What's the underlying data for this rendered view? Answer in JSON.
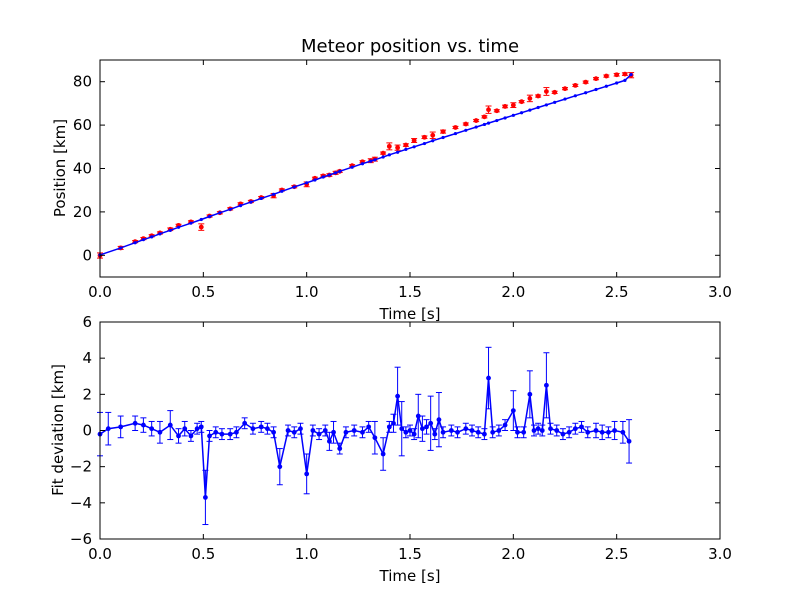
{
  "figure": {
    "background": "#ffffff"
  },
  "chart_data": [
    {
      "type": "scatter",
      "title": "Meteor position vs. time",
      "xlabel": "Time [s]",
      "ylabel": "Position [km]",
      "xlim": [
        0.0,
        3.0
      ],
      "ylim": [
        -10,
        90
      ],
      "xticks": [
        "0.0",
        "0.5",
        "1.0",
        "1.5",
        "2.0",
        "2.5",
        "3.0"
      ],
      "yticks": [
        "0",
        "20",
        "40",
        "60",
        "80"
      ],
      "grid": false,
      "series": [
        {
          "kind": "measurements-with-errorbars",
          "color": "#ff0000",
          "x": [
            0.0,
            0.1,
            0.17,
            0.21,
            0.25,
            0.29,
            0.34,
            0.38,
            0.44,
            0.49,
            0.53,
            0.58,
            0.63,
            0.68,
            0.73,
            0.78,
            0.84,
            0.88,
            0.94,
            1.0,
            1.04,
            1.08,
            1.11,
            1.14,
            1.16,
            1.22,
            1.27,
            1.31,
            1.33,
            1.37,
            1.4,
            1.44,
            1.48,
            1.52,
            1.57,
            1.61,
            1.66,
            1.72,
            1.77,
            1.82,
            1.86,
            1.88,
            1.92,
            1.96,
            2.0,
            2.04,
            2.08,
            2.12,
            2.16,
            2.2,
            2.25,
            2.3,
            2.35,
            2.4,
            2.45,
            2.5,
            2.54,
            2.57
          ],
          "y": [
            -0.1,
            3.4,
            6.3,
            7.7,
            9.0,
            10.3,
            12.0,
            13.8,
            15.4,
            13.0,
            18.1,
            19.6,
            21.4,
            23.7,
            24.8,
            26.6,
            27.5,
            30.1,
            31.6,
            32.7,
            35.5,
            36.6,
            37.0,
            38.0,
            38.7,
            41.3,
            43.1,
            43.6,
            44.3,
            47.1,
            50.2,
            49.6,
            50.8,
            52.9,
            54.4,
            55.3,
            57.0,
            58.9,
            60.5,
            62.1,
            63.8,
            67.1,
            66.6,
            68.6,
            69.2,
            70.8,
            72.3,
            73.4,
            75.5,
            75.1,
            76.8,
            78.3,
            79.8,
            81.4,
            82.6,
            83.2,
            83.5,
            83.0
          ],
          "yerr": [
            1.2,
            0.7,
            0.5,
            0.5,
            0.5,
            0.5,
            0.6,
            0.5,
            0.5,
            1.5,
            0.5,
            0.5,
            0.5,
            0.5,
            0.5,
            0.5,
            1.0,
            0.5,
            0.5,
            1.1,
            0.5,
            0.5,
            0.6,
            0.7,
            0.5,
            0.5,
            0.5,
            0.9,
            0.9,
            0.5,
            1.6,
            1.2,
            0.6,
            0.9,
            0.6,
            1.5,
            0.7,
            0.5,
            0.5,
            0.5,
            0.5,
            1.7,
            0.5,
            0.6,
            1.1,
            0.5,
            1.5,
            0.5,
            1.8,
            0.5,
            0.5,
            0.5,
            0.5,
            0.5,
            0.5,
            0.6,
            0.6,
            1.2
          ]
        },
        {
          "kind": "fit-line",
          "color": "#0000ff",
          "x": [
            0.0,
            0.1,
            0.17,
            0.21,
            0.25,
            0.29,
            0.34,
            0.38,
            0.44,
            0.49,
            0.53,
            0.58,
            0.63,
            0.68,
            0.73,
            0.78,
            0.84,
            0.88,
            0.94,
            1.0,
            1.04,
            1.08,
            1.11,
            1.14,
            1.16,
            1.22,
            1.27,
            1.31,
            1.33,
            1.37,
            1.4,
            1.44,
            1.48,
            1.52,
            1.57,
            1.61,
            1.66,
            1.72,
            1.77,
            1.82,
            1.86,
            1.88,
            1.92,
            1.96,
            2.0,
            2.04,
            2.08,
            2.12,
            2.16,
            2.2,
            2.25,
            2.3,
            2.35,
            2.4,
            2.45,
            2.5,
            2.54,
            2.57
          ],
          "y": [
            0.2,
            3.4,
            5.8,
            7.2,
            8.5,
            9.9,
            11.5,
            12.9,
            14.8,
            16.5,
            17.9,
            19.6,
            21.2,
            22.9,
            24.5,
            26.2,
            28.1,
            29.5,
            31.5,
            33.4,
            34.7,
            36.1,
            37.0,
            38.0,
            38.7,
            40.6,
            42.2,
            43.4,
            44.0,
            45.3,
            46.3,
            47.5,
            48.8,
            50.0,
            51.5,
            52.8,
            54.3,
            56.1,
            57.6,
            59.1,
            60.3,
            60.9,
            62.1,
            63.3,
            64.5,
            65.7,
            66.9,
            68.1,
            69.3,
            70.5,
            72.0,
            73.5,
            74.9,
            76.4,
            77.9,
            79.4,
            80.6,
            83.3
          ]
        }
      ]
    },
    {
      "type": "line",
      "title": "",
      "xlabel": "Time [s]",
      "ylabel": "Fit deviation [km]",
      "xlim": [
        0.0,
        3.0
      ],
      "ylim": [
        -6,
        6
      ],
      "xticks": [
        "0.0",
        "0.5",
        "1.0",
        "1.5",
        "2.0",
        "2.5",
        "3.0"
      ],
      "yticks": [
        "−6",
        "−4",
        "−2",
        "0",
        "2",
        "4",
        "6"
      ],
      "grid": false,
      "series": [
        {
          "kind": "residuals-with-errorbars",
          "color": "#0000ff",
          "x": [
            0.0,
            0.04,
            0.1,
            0.17,
            0.21,
            0.25,
            0.29,
            0.34,
            0.38,
            0.41,
            0.44,
            0.47,
            0.49,
            0.51,
            0.53,
            0.56,
            0.59,
            0.63,
            0.66,
            0.7,
            0.74,
            0.78,
            0.81,
            0.84,
            0.87,
            0.91,
            0.94,
            0.97,
            1.0,
            1.03,
            1.06,
            1.09,
            1.11,
            1.13,
            1.16,
            1.19,
            1.23,
            1.27,
            1.3,
            1.33,
            1.37,
            1.4,
            1.42,
            1.44,
            1.46,
            1.48,
            1.5,
            1.52,
            1.54,
            1.56,
            1.58,
            1.6,
            1.62,
            1.64,
            1.66,
            1.7,
            1.73,
            1.77,
            1.8,
            1.83,
            1.86,
            1.88,
            1.9,
            1.93,
            1.96,
            2.0,
            2.02,
            2.05,
            2.08,
            2.1,
            2.12,
            2.14,
            2.16,
            2.18,
            2.21,
            2.24,
            2.27,
            2.3,
            2.33,
            2.36,
            2.4,
            2.43,
            2.46,
            2.49,
            2.53,
            2.56
          ],
          "y": [
            -0.2,
            0.1,
            0.2,
            0.4,
            0.3,
            0.1,
            -0.1,
            0.3,
            -0.3,
            0.1,
            -0.3,
            0.1,
            0.2,
            -3.7,
            -0.3,
            -0.1,
            -0.2,
            -0.2,
            -0.1,
            0.4,
            0.1,
            0.2,
            0.1,
            -0.1,
            -2.0,
            0.0,
            -0.1,
            0.1,
            -2.4,
            0.0,
            -0.2,
            0.0,
            -0.6,
            -0.1,
            -1.0,
            -0.1,
            0.0,
            -0.1,
            0.2,
            -0.4,
            -1.3,
            0.2,
            0.4,
            1.9,
            0.1,
            -0.1,
            0.0,
            -0.2,
            0.8,
            0.1,
            0.2,
            0.4,
            -0.2,
            0.6,
            -0.1,
            0.0,
            -0.1,
            0.1,
            0.0,
            -0.1,
            -0.2,
            2.9,
            -0.1,
            0.0,
            0.3,
            1.1,
            -0.1,
            -0.1,
            2.0,
            0.0,
            0.1,
            0.0,
            2.5,
            0.1,
            0.0,
            -0.2,
            -0.1,
            0.1,
            0.2,
            -0.1,
            0.0,
            -0.1,
            -0.1,
            0.0,
            -0.1,
            -0.6
          ],
          "yerr": [
            1.2,
            0.9,
            0.6,
            0.4,
            0.4,
            0.4,
            0.6,
            0.8,
            0.4,
            0.4,
            0.3,
            0.3,
            0.3,
            1.5,
            0.3,
            0.3,
            0.3,
            0.3,
            0.3,
            0.3,
            0.3,
            0.3,
            0.3,
            0.3,
            1.0,
            0.3,
            0.3,
            0.3,
            1.1,
            0.3,
            0.3,
            0.3,
            0.5,
            0.6,
            0.3,
            0.3,
            0.3,
            0.3,
            0.3,
            0.9,
            0.9,
            0.3,
            0.5,
            1.6,
            1.5,
            0.3,
            0.3,
            0.3,
            1.2,
            0.7,
            0.4,
            1.5,
            0.3,
            1.5,
            0.3,
            0.3,
            0.3,
            0.3,
            0.3,
            0.3,
            0.3,
            1.7,
            0.3,
            0.3,
            0.3,
            1.1,
            0.3,
            0.3,
            1.3,
            0.3,
            0.3,
            0.3,
            1.8,
            0.3,
            0.3,
            0.3,
            0.3,
            0.3,
            0.3,
            0.3,
            0.4,
            0.4,
            0.3,
            0.5,
            0.6,
            1.2
          ]
        }
      ]
    }
  ]
}
